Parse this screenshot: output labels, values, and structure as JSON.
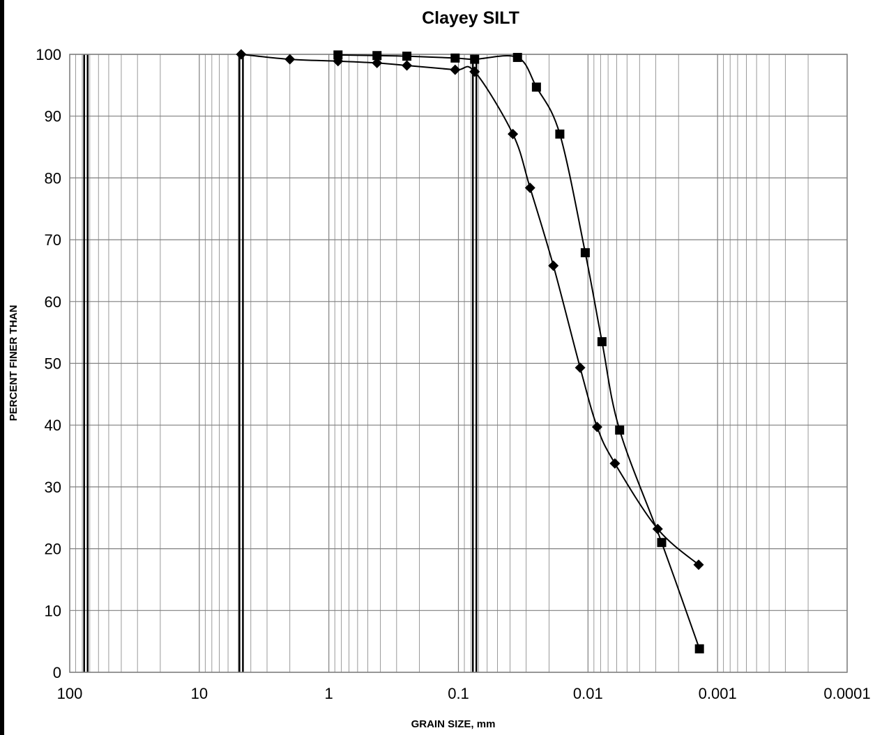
{
  "chart_data": {
    "type": "scatter",
    "title": "Clayey SILT",
    "xlabel": "GRAIN SIZE, mm",
    "ylabel": "PERCENT FINER THAN",
    "x_scale": "log",
    "x_reversed": true,
    "xlim": [
      100,
      0.0001
    ],
    "ylim": [
      0,
      100
    ],
    "x_ticks": [
      100,
      10,
      1,
      0.1,
      0.01,
      0.001,
      0.0001
    ],
    "x_tick_labels": [
      "100",
      "10",
      "1",
      "0.1",
      "0.01",
      "0.001",
      "0.0001"
    ],
    "y_ticks": [
      0,
      10,
      20,
      30,
      40,
      50,
      60,
      70,
      80,
      90,
      100
    ],
    "y_tick_labels": [
      "0",
      "10",
      "20",
      "30",
      "40",
      "50",
      "60",
      "70",
      "80",
      "90",
      "100"
    ],
    "grid": true,
    "legend": "none",
    "boundary_lines": [
      75,
      4.75,
      0.075
    ],
    "series": [
      {
        "marker": "diamond",
        "color": "#000000",
        "points": [
          {
            "x": 4.75,
            "y": 100
          },
          {
            "x": 2.0,
            "y": 99.2
          },
          {
            "x": 0.85,
            "y": 98.9
          },
          {
            "x": 0.425,
            "y": 98.6
          },
          {
            "x": 0.25,
            "y": 98.2
          },
          {
            "x": 0.106,
            "y": 97.5
          },
          {
            "x": 0.075,
            "y": 97.2
          },
          {
            "x": 0.038,
            "y": 87.1
          },
          {
            "x": 0.028,
            "y": 78.4
          },
          {
            "x": 0.0185,
            "y": 65.8
          },
          {
            "x": 0.0115,
            "y": 49.3
          },
          {
            "x": 0.0085,
            "y": 39.7
          },
          {
            "x": 0.0062,
            "y": 33.8
          },
          {
            "x": 0.0029,
            "y": 23.2
          },
          {
            "x": 0.0014,
            "y": 17.4
          }
        ]
      },
      {
        "marker": "square",
        "color": "#000000",
        "points": [
          {
            "x": 0.85,
            "y": 99.9
          },
          {
            "x": 0.425,
            "y": 99.8
          },
          {
            "x": 0.25,
            "y": 99.7
          },
          {
            "x": 0.106,
            "y": 99.4
          },
          {
            "x": 0.075,
            "y": 99.2
          },
          {
            "x": 0.035,
            "y": 99.5
          },
          {
            "x": 0.025,
            "y": 94.7
          },
          {
            "x": 0.0165,
            "y": 87.1
          },
          {
            "x": 0.0105,
            "y": 67.9
          },
          {
            "x": 0.0078,
            "y": 53.5
          },
          {
            "x": 0.0057,
            "y": 39.2
          },
          {
            "x": 0.0027,
            "y": 21.0
          },
          {
            "x": 0.00138,
            "y": 3.8
          }
        ]
      }
    ]
  }
}
